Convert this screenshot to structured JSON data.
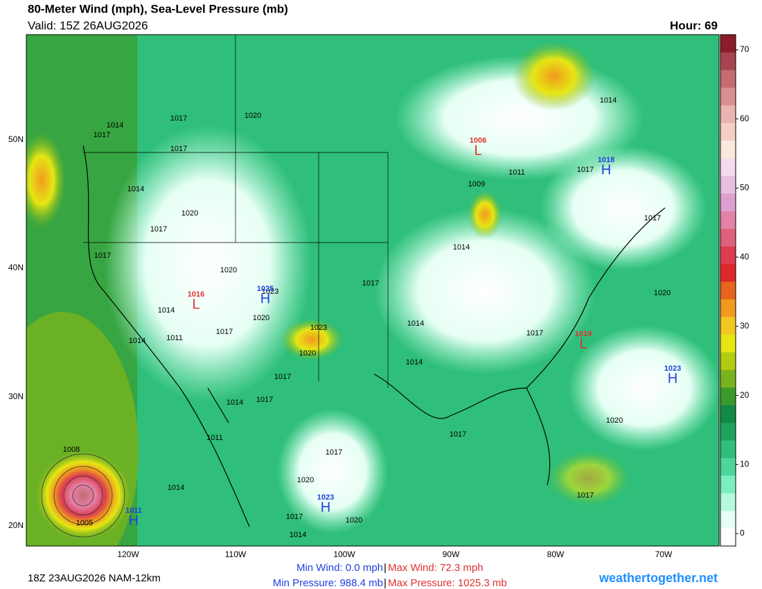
{
  "header": {
    "title": "80-Meter Wind (mph), Sea-Level Pressure (mb)",
    "valid": "Valid: 15Z 26AUG2026",
    "hour": "Hour: 69"
  },
  "map": {
    "lon_labels": [
      "120W",
      "110W",
      "100W",
      "90W",
      "80W",
      "70W"
    ],
    "lat_labels": [
      "20N",
      "30N",
      "40N",
      "50N"
    ],
    "pressure_labels": [
      "1017",
      "1014",
      "1017",
      "1017",
      "1020",
      "1014",
      "1020",
      "1017",
      "1017",
      "1020",
      "1023",
      "1014",
      "1011",
      "1014",
      "1017",
      "1020",
      "1023",
      "1020",
      "1017",
      "1014",
      "1014",
      "1014",
      "1017",
      "1014",
      "1017",
      "1011",
      "1017",
      "1020",
      "1014",
      "1008",
      "1005",
      "1017",
      "1017",
      "1020",
      "1020",
      "1017",
      "1014",
      "1011",
      "1009",
      "1017",
      "1017",
      "1020",
      "1017",
      "1014"
    ],
    "centers": [
      {
        "letter": "H",
        "value": "1025",
        "color": "#2040e0"
      },
      {
        "letter": "L",
        "value": "1016",
        "color": "#e03030"
      },
      {
        "letter": "L",
        "value": "1006",
        "color": "#e03030"
      },
      {
        "letter": "H",
        "value": "1018",
        "color": "#2040e0"
      },
      {
        "letter": "L",
        "value": "1019",
        "color": "#e03030"
      },
      {
        "letter": "H",
        "value": "1023",
        "color": "#2040e0"
      },
      {
        "letter": "H",
        "value": "1023",
        "color": "#2040e0"
      },
      {
        "letter": "H",
        "value": "1011",
        "color": "#2040e0"
      }
    ]
  },
  "colorbar": {
    "lim": [
      -1.8,
      72.2
    ],
    "ticks": [
      0,
      10,
      20,
      30,
      40,
      50,
      60,
      70
    ],
    "colors": [
      "#ffffff",
      "#e6fff4",
      "#b4fadc",
      "#7cefbe",
      "#4cd79a",
      "#2fbf7a",
      "#1ea35c",
      "#108a44",
      "#3a9a2a",
      "#78b41e",
      "#b4cc10",
      "#e6e614",
      "#f2c81e",
      "#f09a1e",
      "#e6641e",
      "#dc2828",
      "#dc3c50",
      "#e0607c",
      "#e482a8",
      "#dca0d0",
      "#e8c0e0",
      "#f4dcec",
      "#fae8dc",
      "#f4d0c4",
      "#eab4b0",
      "#d89090",
      "#c46c70",
      "#a84450",
      "#8c1c28"
    ]
  },
  "footer": {
    "run": "18Z 23AUG2026 NAM-12km",
    "min_wind": "Min Wind:  0.0 mph",
    "separator": "|",
    "max_wind": "Max Wind: 72.3 mph",
    "min_pressure": "Min Pressure: 988.4 mb",
    "max_pressure": "Max Pressure: 1025.3 mb",
    "site": "weathertogether.net"
  }
}
